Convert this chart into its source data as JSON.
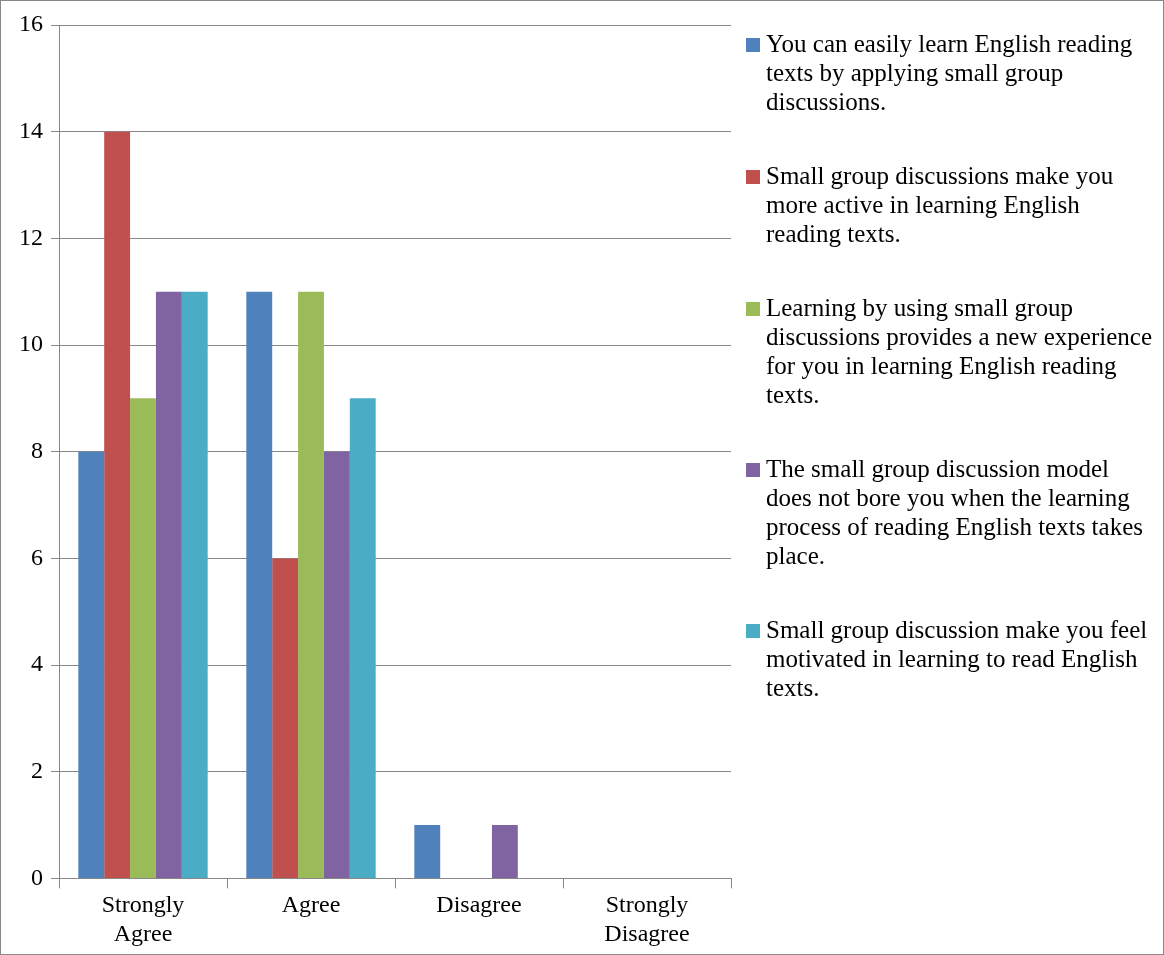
{
  "chart_data": {
    "type": "bar",
    "categories": [
      "Strongly Agree",
      "Agree",
      "Disagree",
      "Strongly Disagree"
    ],
    "series": [
      {
        "name": "You can easily learn English reading texts by applying small group discussions.",
        "color": "#4f81bd",
        "values": [
          8,
          11,
          1,
          0
        ]
      },
      {
        "name": "Small group discussions make you more active in learning English reading texts.",
        "color": "#c0504d",
        "values": [
          14,
          6,
          0,
          0
        ]
      },
      {
        "name": "Learning by using small group discussions provides a new experience for you in learning English reading texts.",
        "color": "#9bbb59",
        "values": [
          9,
          11,
          0,
          0
        ]
      },
      {
        "name": "The small group discussion model does not bore you when the learning process of reading English texts takes place.",
        "color": "#8064a2",
        "values": [
          11,
          8,
          1,
          0
        ]
      },
      {
        "name": "Small group discussion  make you feel motivated in learning to read English texts.",
        "color": "#4bacc6",
        "values": [
          11,
          9,
          0,
          0
        ]
      }
    ],
    "ylim": [
      0,
      16
    ],
    "yticks": [
      0,
      2,
      4,
      6,
      8,
      10,
      12,
      14,
      16
    ],
    "grid": "y",
    "legend": "right"
  }
}
